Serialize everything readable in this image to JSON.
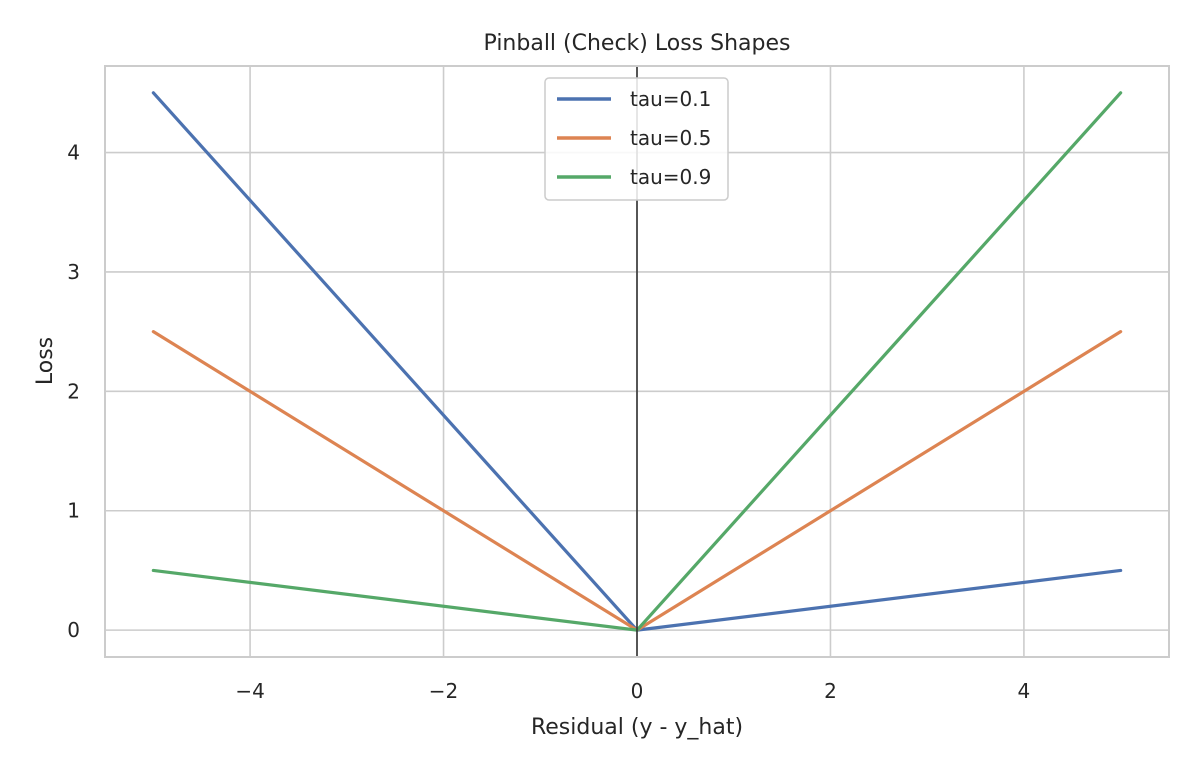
{
  "chart_data": {
    "type": "line",
    "title": "Pinball (Check) Loss Shapes",
    "xlabel": "Residual (y - y_hat)",
    "ylabel": "Loss",
    "xlim": [
      -5.5,
      5.5
    ],
    "ylim": [
      -0.225,
      4.725
    ],
    "xticks": [
      -4,
      -2,
      0,
      2,
      4
    ],
    "xtick_labels": [
      "−4",
      "−2",
      "0",
      "2",
      "4"
    ],
    "yticks": [
      0,
      1,
      2,
      3,
      4
    ],
    "ytick_labels": [
      "0",
      "1",
      "2",
      "3",
      "4"
    ],
    "grid": true,
    "legend_position": "top-center",
    "vline_x": 0,
    "x": [
      -5,
      0,
      5
    ],
    "series": [
      {
        "name": "tau=0.1",
        "color": "#4c72b0",
        "values": [
          4.5,
          0,
          0.5
        ]
      },
      {
        "name": "tau=0.5",
        "color": "#dd8452",
        "values": [
          2.5,
          0,
          2.5
        ]
      },
      {
        "name": "tau=0.9",
        "color": "#55a868",
        "values": [
          0.5,
          0,
          4.5
        ]
      }
    ]
  }
}
